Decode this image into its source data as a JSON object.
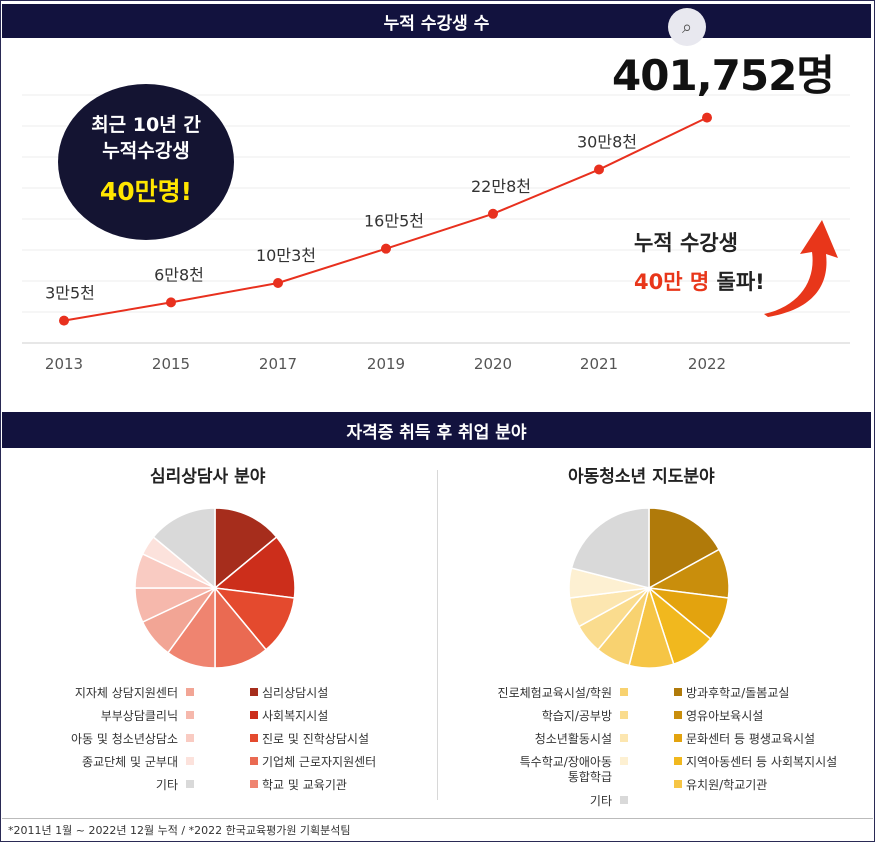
{
  "header": {
    "top_title": "누적 수강생 수",
    "total_label": "401,752명",
    "camera_icon": "camera-search-icon"
  },
  "badge": {
    "line1": "최근 10년 간",
    "line2": "누적수강생",
    "line3": "40만명!"
  },
  "note": {
    "line1": "누적 수강생",
    "line2_red": "40만 명",
    "line2_rest": " 돌파!",
    "arrow_color": "#e8361a"
  },
  "chart_data": [
    {
      "type": "line",
      "title": "누적 수강생 수",
      "categories": [
        "2013",
        "2015",
        "2017",
        "2019",
        "2020",
        "2021",
        "2022"
      ],
      "values": [
        35000,
        68000,
        103000,
        165000,
        228000,
        308000,
        401752
      ],
      "data_labels": [
        "3만5천",
        "6만8천",
        "10만3천",
        "16만5천",
        "22만8천",
        "30만8천",
        ""
      ],
      "ylim": [
        0,
        430000
      ],
      "grid": true,
      "color": "#e8301e"
    },
    {
      "type": "pie",
      "title": "심리상담사 분야",
      "labels": [
        "심리상담시설",
        "사회복지시설",
        "진로 및 진학상담시설",
        "기업체 근로자지원센터",
        "학교 및 교육기관",
        "지자체 상담지원센터",
        "부부상담클리닉",
        "아동 및 청소년상담소",
        "종교단체 및 군부대",
        "기타"
      ],
      "values": [
        14,
        13,
        12,
        11,
        10,
        8,
        7,
        7,
        4,
        14
      ],
      "colors": [
        "#a62d1c",
        "#cc2e1b",
        "#e44a2e",
        "#ea6a52",
        "#ef8470",
        "#f2a595",
        "#f6b8ac",
        "#f9cbc2",
        "#fce2dc",
        "#d9d9d9"
      ]
    },
    {
      "type": "pie",
      "title": "아동청소년 지도분야",
      "labels": [
        "방과후학교/돌봄교실",
        "영유아보육시설",
        "문화센터 등 평생교육시설",
        "지역아동센터 등 사회복지시설",
        "유치원/학교기관",
        "진로체험교육시설/학원",
        "학습지/공부방",
        "청소년활동시설",
        "특수학교/장애아동 통합학급",
        "기타"
      ],
      "values": [
        17,
        10,
        9,
        9,
        9,
        7,
        6,
        6,
        6,
        21
      ],
      "colors": [
        "#b07a0a",
        "#c98e0c",
        "#e3a30e",
        "#f1b81e",
        "#f6c545",
        "#f8d270",
        "#fadc8e",
        "#fce6b0",
        "#fdf0d2",
        "#d9d9d9"
      ]
    }
  ],
  "section2": {
    "title": "자격증 취득 후 취업 분야"
  },
  "left_legend_left": [
    {
      "label": "지자체 상담지원센터",
      "color": "#f2a595"
    },
    {
      "label": "부부상담클리닉",
      "color": "#f6b8ac"
    },
    {
      "label": "아동 및 청소년상담소",
      "color": "#f9cbc2"
    },
    {
      "label": "종교단체 및 군부대",
      "color": "#fce2dc"
    },
    {
      "label": "기타",
      "color": "#d9d9d9"
    }
  ],
  "left_legend_right": [
    {
      "label": "심리상담시설",
      "color": "#a62d1c"
    },
    {
      "label": "사회복지시설",
      "color": "#cc2e1b"
    },
    {
      "label": "진로 및 진학상담시설",
      "color": "#e44a2e"
    },
    {
      "label": "기업체 근로자지원센터",
      "color": "#ea6a52"
    },
    {
      "label": "학교 및 교육기관",
      "color": "#ef8470"
    }
  ],
  "right_legend_left": [
    {
      "label": "진로체험교육시설/학원",
      "color": "#f8d270"
    },
    {
      "label": "학습지/공부방",
      "color": "#fadc8e"
    },
    {
      "label": "청소년활동시설",
      "color": "#fce6b0"
    },
    {
      "label": "특수학교/장애아동",
      "label2": "통합학급",
      "color": "#fdf0d2"
    },
    {
      "label": "기타",
      "color": "#d9d9d9"
    }
  ],
  "right_legend_right": [
    {
      "label": "방과후학교/돌봄교실",
      "color": "#b07a0a"
    },
    {
      "label": "영유아보육시설",
      "color": "#c98e0c"
    },
    {
      "label": "문화센터 등 평생교육시설",
      "color": "#e3a30e"
    },
    {
      "label": "지역아동센터 등 사회복지시설",
      "color": "#f1b81e"
    },
    {
      "label": "유치원/학교기관",
      "color": "#f6c545"
    }
  ],
  "footer": {
    "text": "*2011년 1월 ~ 2022년 12월 누적 / *2022 한국교육평가원 기획분석팀"
  }
}
